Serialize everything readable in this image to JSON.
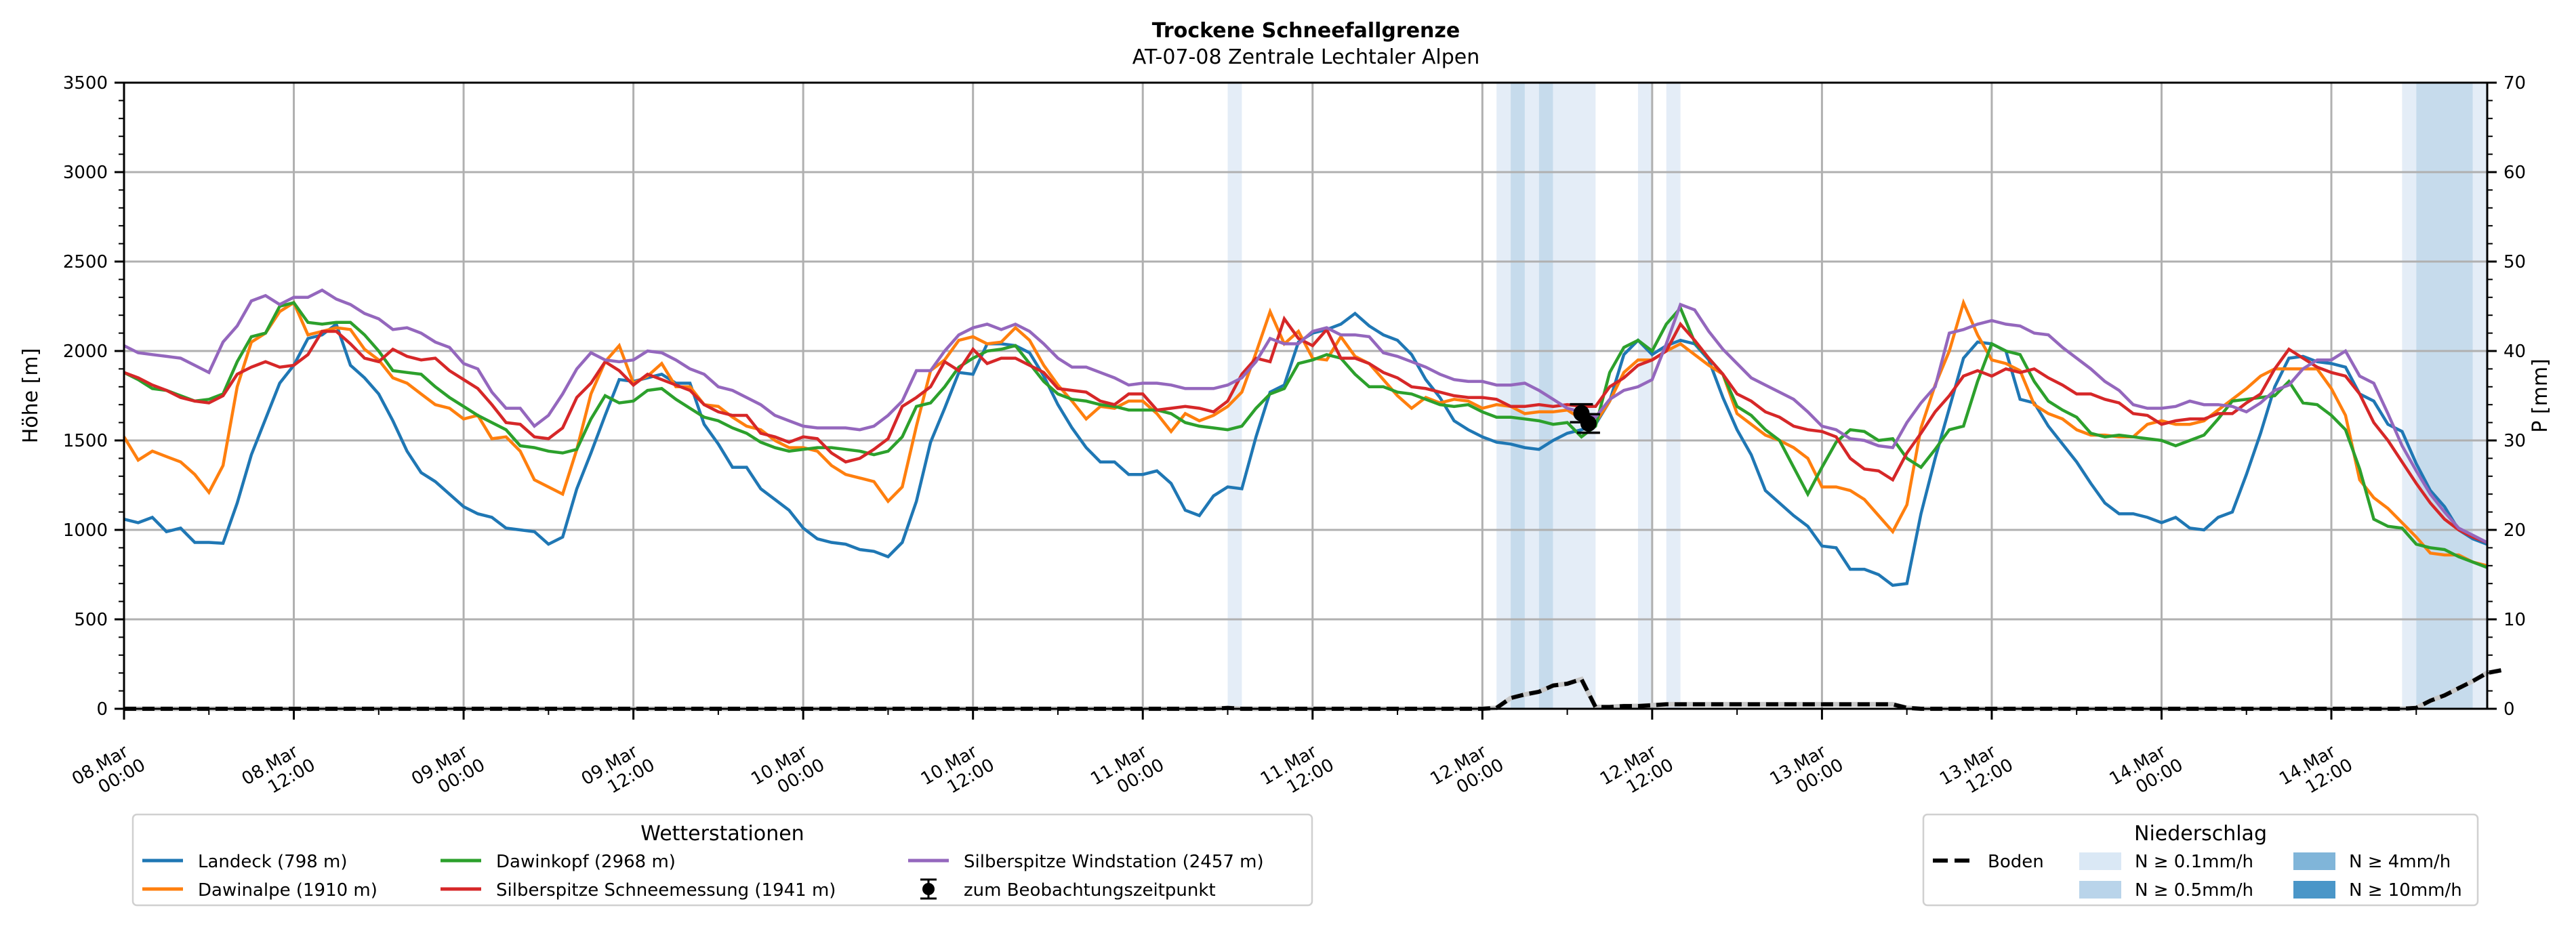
{
  "chart_data": {
    "type": "line",
    "title": "Trockene Schneefallgrenze",
    "subtitle": "AT-07-08 Zentrale Lechtaler Alpen",
    "ylabel": "Höhe [m]",
    "y2label": "P [mm]",
    "ylim": [
      0,
      3500
    ],
    "y2lim": [
      0,
      70
    ],
    "yticks": [
      "0",
      "500",
      "1000",
      "1500",
      "2000",
      "2500",
      "3000",
      "3500"
    ],
    "y2ticks": [
      "0",
      "10",
      "20",
      "30",
      "40",
      "50",
      "60",
      "70"
    ],
    "x_unit": "hours since 08.Mar 00:00",
    "xlim": [
      0,
      167
    ],
    "xticks": [
      {
        "hour": 0,
        "line1": "08.Mar",
        "line2": "00:00"
      },
      {
        "hour": 12,
        "line1": "08.Mar",
        "line2": "12:00"
      },
      {
        "hour": 24,
        "line1": "09.Mar",
        "line2": "00:00"
      },
      {
        "hour": 36,
        "line1": "09.Mar",
        "line2": "12:00"
      },
      {
        "hour": 48,
        "line1": "10.Mar",
        "line2": "00:00"
      },
      {
        "hour": 60,
        "line1": "10.Mar",
        "line2": "12:00"
      },
      {
        "hour": 72,
        "line1": "11.Mar",
        "line2": "00:00"
      },
      {
        "hour": 84,
        "line1": "11.Mar",
        "line2": "12:00"
      },
      {
        "hour": 96,
        "line1": "12.Mar",
        "line2": "00:00"
      },
      {
        "hour": 108,
        "line1": "12.Mar",
        "line2": "12:00"
      },
      {
        "hour": 120,
        "line1": "13.Mar",
        "line2": "00:00"
      },
      {
        "hour": 132,
        "line1": "13.Mar",
        "line2": "12:00"
      },
      {
        "hour": 144,
        "line1": "14.Mar",
        "line2": "00:00"
      },
      {
        "hour": 156,
        "line1": "14.Mar",
        "line2": "12:00"
      }
    ],
    "grid": true,
    "series": [
      {
        "name": "Landeck (798 m)",
        "color": "#1f77b4",
        "values": [
          1060,
          1040,
          1070,
          990,
          1010,
          930,
          930,
          925,
          1150,
          1420,
          1620,
          1820,
          1920,
          2070,
          2090,
          2150,
          1920,
          1850,
          1760,
          1610,
          1440,
          1320,
          1270,
          1200,
          1130,
          1090,
          1070,
          1010,
          1000,
          990,
          920,
          960,
          1230,
          1430,
          1640,
          1840,
          1830,
          1850,
          1870,
          1820,
          1820,
          1590,
          1480,
          1350,
          1350,
          1230,
          1170,
          1110,
          1010,
          950,
          930,
          920,
          890,
          880,
          850,
          930,
          1160,
          1490,
          1680,
          1880,
          1870,
          2040,
          2040,
          2030,
          1990,
          1860,
          1700,
          1570,
          1460,
          1380,
          1380,
          1310,
          1310,
          1330,
          1260,
          1110,
          1080,
          1190,
          1240,
          1230,
          1520,
          1770,
          1810,
          2050,
          2100,
          2120,
          2150,
          2210,
          2140,
          2090,
          2060,
          1980,
          1840,
          1740,
          1610,
          1560,
          1520,
          1490,
          1480,
          1460,
          1450,
          1500,
          1540,
          1560,
          1590,
          1720,
          1980,
          2060,
          1980,
          2030,
          2060,
          2040,
          1950,
          1740,
          1560,
          1420,
          1220,
          1150,
          1080,
          1020,
          910,
          900,
          780,
          780,
          750,
          690,
          700,
          1090,
          1400,
          1680,
          1960,
          2050,
          2040,
          2000,
          1730,
          1710,
          1580,
          1480,
          1380,
          1260,
          1150,
          1090,
          1090,
          1070,
          1040,
          1070,
          1010,
          1000,
          1070,
          1100,
          1310,
          1540,
          1800,
          1960,
          1970,
          1940,
          1930,
          1910,
          1760,
          1720,
          1590,
          1550,
          1370,
          1220,
          1130,
          1000,
          950,
          920
        ]
      },
      {
        "name": "Dawinalpe (1910 m)",
        "color": "#ff7f0e",
        "values": [
          1520,
          1390,
          1440,
          1410,
          1380,
          1310,
          1210,
          1360,
          1800,
          2050,
          2100,
          2220,
          2270,
          2090,
          2110,
          2130,
          2120,
          2010,
          1950,
          1850,
          1820,
          1760,
          1700,
          1680,
          1620,
          1640,
          1510,
          1520,
          1440,
          1280,
          1240,
          1200,
          1450,
          1760,
          1940,
          2030,
          1820,
          1860,
          1930,
          1800,
          1800,
          1700,
          1690,
          1630,
          1580,
          1560,
          1500,
          1460,
          1460,
          1440,
          1360,
          1310,
          1290,
          1270,
          1160,
          1240,
          1580,
          1890,
          1950,
          2060,
          2080,
          2040,
          2050,
          2130,
          2060,
          1920,
          1810,
          1720,
          1620,
          1690,
          1680,
          1720,
          1720,
          1650,
          1550,
          1650,
          1610,
          1640,
          1690,
          1770,
          1990,
          2220,
          2040,
          2110,
          1960,
          1950,
          2080,
          1970,
          1930,
          1840,
          1750,
          1680,
          1740,
          1710,
          1730,
          1720,
          1680,
          1700,
          1690,
          1650,
          1660,
          1660,
          1670,
          1620,
          1600,
          1720,
          1880,
          1950,
          1950,
          2000,
          2040,
          1980,
          1920,
          1870,
          1650,
          1590,
          1530,
          1500,
          1460,
          1400,
          1240,
          1240,
          1220,
          1170,
          1080,
          990,
          1140,
          1570,
          1810,
          2000,
          2270,
          2090,
          1950,
          1930,
          1890,
          1700,
          1650,
          1620,
          1560,
          1530,
          1530,
          1520,
          1520,
          1590,
          1610,
          1590,
          1590,
          1610,
          1670,
          1730,
          1790,
          1860,
          1900,
          1900,
          1900,
          1900,
          1790,
          1640,
          1280,
          1180,
          1120,
          1040,
          960,
          870,
          860,
          860,
          820,
          800
        ]
      },
      {
        "name": "Dawinkopf (2968 m)",
        "color": "#2ca02c",
        "values": [
          1880,
          1840,
          1790,
          1780,
          1750,
          1720,
          1730,
          1760,
          1940,
          2080,
          2100,
          2250,
          2270,
          2160,
          2150,
          2160,
          2160,
          2090,
          2000,
          1890,
          1880,
          1870,
          1800,
          1740,
          1690,
          1640,
          1600,
          1560,
          1470,
          1460,
          1440,
          1430,
          1450,
          1620,
          1750,
          1710,
          1720,
          1780,
          1790,
          1730,
          1680,
          1630,
          1610,
          1570,
          1540,
          1490,
          1460,
          1440,
          1450,
          1460,
          1460,
          1450,
          1440,
          1420,
          1440,
          1520,
          1690,
          1710,
          1800,
          1910,
          1960,
          2000,
          2010,
          2030,
          1930,
          1830,
          1760,
          1730,
          1720,
          1700,
          1690,
          1670,
          1670,
          1670,
          1650,
          1600,
          1580,
          1570,
          1560,
          1580,
          1680,
          1760,
          1790,
          1930,
          1950,
          1980,
          1960,
          1870,
          1800,
          1800,
          1770,
          1760,
          1730,
          1700,
          1690,
          1700,
          1660,
          1630,
          1630,
          1620,
          1610,
          1590,
          1600,
          1520,
          1580,
          1880,
          2020,
          2060,
          2000,
          2150,
          2240,
          2050,
          1960,
          1870,
          1690,
          1640,
          1560,
          1500,
          1350,
          1200,
          1350,
          1490,
          1560,
          1550,
          1500,
          1510,
          1400,
          1350,
          1450,
          1560,
          1580,
          1830,
          2040,
          2000,
          1980,
          1830,
          1720,
          1670,
          1630,
          1540,
          1520,
          1530,
          1520,
          1510,
          1500,
          1470,
          1500,
          1530,
          1620,
          1720,
          1730,
          1740,
          1750,
          1830,
          1710,
          1700,
          1640,
          1560,
          1340,
          1060,
          1020,
          1010,
          920,
          900,
          890,
          850,
          820,
          790
        ]
      },
      {
        "name": "Silberspitze Schneemessung (1941 m)",
        "color": "#d62728",
        "values": [
          1880,
          1850,
          1810,
          1780,
          1740,
          1720,
          1710,
          1750,
          1870,
          1910,
          1940,
          1910,
          1920,
          1980,
          2110,
          2110,
          2040,
          1960,
          1940,
          2010,
          1970,
          1950,
          1960,
          1890,
          1840,
          1790,
          1700,
          1600,
          1590,
          1520,
          1510,
          1570,
          1740,
          1820,
          1940,
          1890,
          1810,
          1870,
          1840,
          1810,
          1780,
          1700,
          1660,
          1640,
          1640,
          1540,
          1520,
          1490,
          1520,
          1510,
          1430,
          1380,
          1400,
          1450,
          1510,
          1690,
          1740,
          1800,
          1940,
          1890,
          2010,
          1930,
          1960,
          1960,
          1920,
          1880,
          1790,
          1780,
          1770,
          1720,
          1700,
          1760,
          1760,
          1670,
          1680,
          1690,
          1680,
          1660,
          1720,
          1870,
          1960,
          1940,
          2180,
          2070,
          2030,
          2120,
          1960,
          1960,
          1930,
          1880,
          1850,
          1800,
          1790,
          1770,
          1750,
          1740,
          1740,
          1730,
          1690,
          1690,
          1700,
          1690,
          1700,
          1690,
          1690,
          1800,
          1850,
          1920,
          1950,
          2000,
          2150,
          2060,
          1960,
          1870,
          1760,
          1720,
          1660,
          1630,
          1580,
          1560,
          1550,
          1520,
          1400,
          1340,
          1330,
          1280,
          1430,
          1540,
          1660,
          1750,
          1860,
          1890,
          1860,
          1900,
          1880,
          1900,
          1850,
          1810,
          1760,
          1760,
          1730,
          1710,
          1650,
          1640,
          1590,
          1610,
          1620,
          1620,
          1650,
          1650,
          1710,
          1760,
          1900,
          2010,
          1960,
          1910,
          1880,
          1860,
          1760,
          1600,
          1500,
          1380,
          1260,
          1150,
          1060,
          1000,
          960,
          930
        ]
      },
      {
        "name": "Silberspitze Windstation (2457 m)",
        "color": "#9467bd",
        "values": [
          2030,
          1990,
          1980,
          1970,
          1960,
          1920,
          1880,
          2050,
          2140,
          2280,
          2310,
          2260,
          2300,
          2300,
          2340,
          2290,
          2260,
          2210,
          2180,
          2120,
          2130,
          2100,
          2050,
          2020,
          1930,
          1900,
          1770,
          1680,
          1680,
          1580,
          1640,
          1760,
          1900,
          1990,
          1950,
          1940,
          1950,
          2000,
          1990,
          1950,
          1900,
          1870,
          1800,
          1780,
          1740,
          1700,
          1640,
          1610,
          1580,
          1570,
          1570,
          1570,
          1560,
          1580,
          1640,
          1720,
          1890,
          1890,
          2000,
          2090,
          2130,
          2150,
          2120,
          2150,
          2110,
          2040,
          1960,
          1910,
          1910,
          1880,
          1850,
          1810,
          1820,
          1820,
          1810,
          1790,
          1790,
          1790,
          1810,
          1850,
          1940,
          2070,
          2040,
          2040,
          2110,
          2130,
          2090,
          2090,
          2080,
          1990,
          1970,
          1940,
          1910,
          1870,
          1840,
          1830,
          1830,
          1810,
          1810,
          1820,
          1780,
          1730,
          1680,
          1660,
          1630,
          1730,
          1780,
          1800,
          1840,
          2040,
          2260,
          2230,
          2110,
          2010,
          1930,
          1850,
          1810,
          1770,
          1730,
          1660,
          1580,
          1560,
          1510,
          1500,
          1470,
          1460,
          1600,
          1710,
          1800,
          2100,
          2120,
          2150,
          2170,
          2150,
          2140,
          2100,
          2090,
          2020,
          1960,
          1900,
          1830,
          1780,
          1700,
          1680,
          1680,
          1690,
          1720,
          1700,
          1700,
          1690,
          1660,
          1710,
          1780,
          1810,
          1900,
          1950,
          1950,
          2000,
          1860,
          1820,
          1650,
          1470,
          1330,
          1200,
          1100,
          1010,
          970,
          930
        ]
      }
    ],
    "boden": {
      "name": "Boden",
      "unit": "mm",
      "values": [
        0,
        0,
        0,
        0,
        0,
        0,
        0,
        0,
        0,
        0,
        0,
        0,
        0,
        0,
        0,
        0,
        0,
        0,
        0,
        0,
        0,
        0,
        0,
        0,
        0,
        0,
        0,
        0,
        0,
        0,
        0,
        0,
        0,
        0,
        0,
        0,
        0,
        0,
        0,
        0,
        0,
        0,
        0,
        0,
        0,
        0,
        0,
        0,
        0,
        0,
        0,
        0,
        0,
        0,
        0,
        0,
        0,
        0,
        0,
        0,
        0,
        0,
        0,
        0,
        0,
        0,
        0,
        0,
        0,
        0,
        0,
        0,
        0,
        0,
        0,
        0,
        0,
        0,
        0.1,
        0,
        0,
        0,
        0,
        0,
        0,
        0,
        0,
        0,
        0,
        0,
        0,
        0,
        0,
        0,
        0,
        0,
        0,
        0.1,
        1.2,
        1.6,
        1.9,
        2.6,
        2.8,
        3.3,
        0.2,
        0.2,
        0.3,
        0.3,
        0.4,
        0.5,
        0.5,
        0.5,
        0.5,
        0.5,
        0.5,
        0.5,
        0.5,
        0.5,
        0.5,
        0.5,
        0.5,
        0.5,
        0.5,
        0.5,
        0.5,
        0.5,
        0.1,
        0,
        0,
        0,
        0,
        0,
        0,
        0,
        0,
        0,
        0,
        0,
        0,
        0,
        0,
        0,
        0,
        0,
        0,
        0,
        0,
        0,
        0,
        0,
        0,
        0,
        0,
        0,
        0,
        0,
        0,
        0,
        0,
        0,
        0,
        0,
        0.1,
        0.9,
        1.5,
        2.3,
        3.1,
        4.0,
        4.3
      ]
    },
    "precip_bands": [
      {
        "start": 78,
        "end": 79,
        "level": "0.1"
      },
      {
        "start": 97,
        "end": 98,
        "level": "0.1"
      },
      {
        "start": 98,
        "end": 99,
        "level": "0.5"
      },
      {
        "start": 99,
        "end": 100,
        "level": "0.1"
      },
      {
        "start": 100,
        "end": 101,
        "level": "0.5"
      },
      {
        "start": 101,
        "end": 104,
        "level": "0.1"
      },
      {
        "start": 107,
        "end": 108,
        "level": "0.1"
      },
      {
        "start": 109,
        "end": 110,
        "level": "0.1"
      },
      {
        "start": 161,
        "end": 162,
        "level": "0.1"
      },
      {
        "start": 162,
        "end": 166,
        "level": "0.5"
      },
      {
        "start": 166,
        "end": 167,
        "level": "0.1"
      }
    ],
    "observations": {
      "name": "zum Beobachtungszeitpunkt",
      "points": [
        {
          "hour": 103.0,
          "value": 1652,
          "err": 50
        },
        {
          "hour": 103.5,
          "value": 1595,
          "err": 52
        }
      ]
    },
    "legend_stations": {
      "title": "Wetterstationen",
      "placement": "bottom-left"
    },
    "legend_precip": {
      "title": "Niederschlag",
      "placement": "bottom-right",
      "entries": [
        {
          "key": "boden",
          "label": "Boden"
        },
        {
          "key": "0.1",
          "label": "N ≥ 0.1mm/h",
          "color": "#dae8f5"
        },
        {
          "key": "0.5",
          "label": "N ≥ 0.5mm/h",
          "color": "#b9d4ea"
        },
        {
          "key": "4",
          "label": "N ≥ 4mm/h",
          "color": "#80b5d9"
        },
        {
          "key": "10",
          "label": "N ≥ 10mm/h",
          "color": "#4a96c8"
        }
      ]
    },
    "band_colors": {
      "0.1": "#e4edf7",
      "0.5": "#c6dbec",
      "4": "#80b5d9",
      "10": "#4a96c8"
    }
  }
}
